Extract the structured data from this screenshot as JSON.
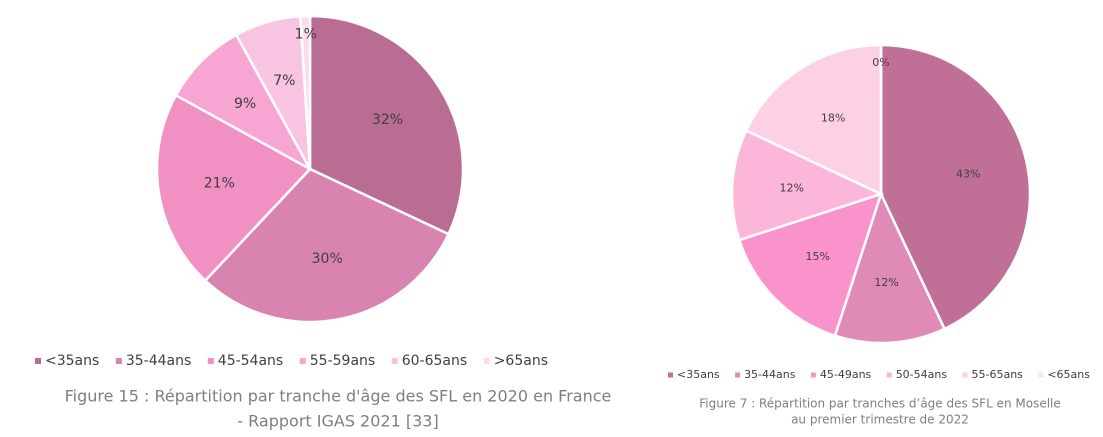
{
  "chart_data": [
    {
      "type": "pie",
      "categories": [
        "<35ans",
        "35-44ans",
        "45-54ans",
        "55-59ans",
        "60-65ans",
        ">65ans"
      ],
      "values": [
        32,
        30,
        21,
        9,
        7,
        1
      ],
      "value_labels": [
        "32%",
        "30%",
        "21%",
        "9%",
        "7%",
        "1%"
      ],
      "colors": [
        "#b96d93",
        "#d883b0",
        "#f090c3",
        "#f7a6d3",
        "#f8c4e2",
        "#fbdcec"
      ],
      "caption": [
        "Figure 15 : Répartition par tranche d'âge des SFL en 2020 en France",
        "- Rapport IGAS 2021 [33]"
      ]
    },
    {
      "type": "pie",
      "categories": [
        "<35ans",
        "35-44ans",
        "45-49ans",
        "50-54ans",
        "55-65ans",
        "<65ans"
      ],
      "values": [
        43,
        12,
        15,
        12,
        18,
        0
      ],
      "value_labels": [
        "43%",
        "12%",
        "15%",
        "12%",
        "18%",
        "0%"
      ],
      "colors": [
        "#c07097",
        "#e08ab7",
        "#fa93cb",
        "#fbb6da",
        "#fdd0e6",
        "#fde0ee"
      ],
      "caption": [
        "Figure 7 : Répartition par tranches d’âge des SFL en Moselle",
        "au premier trimestre de 2022"
      ]
    }
  ]
}
